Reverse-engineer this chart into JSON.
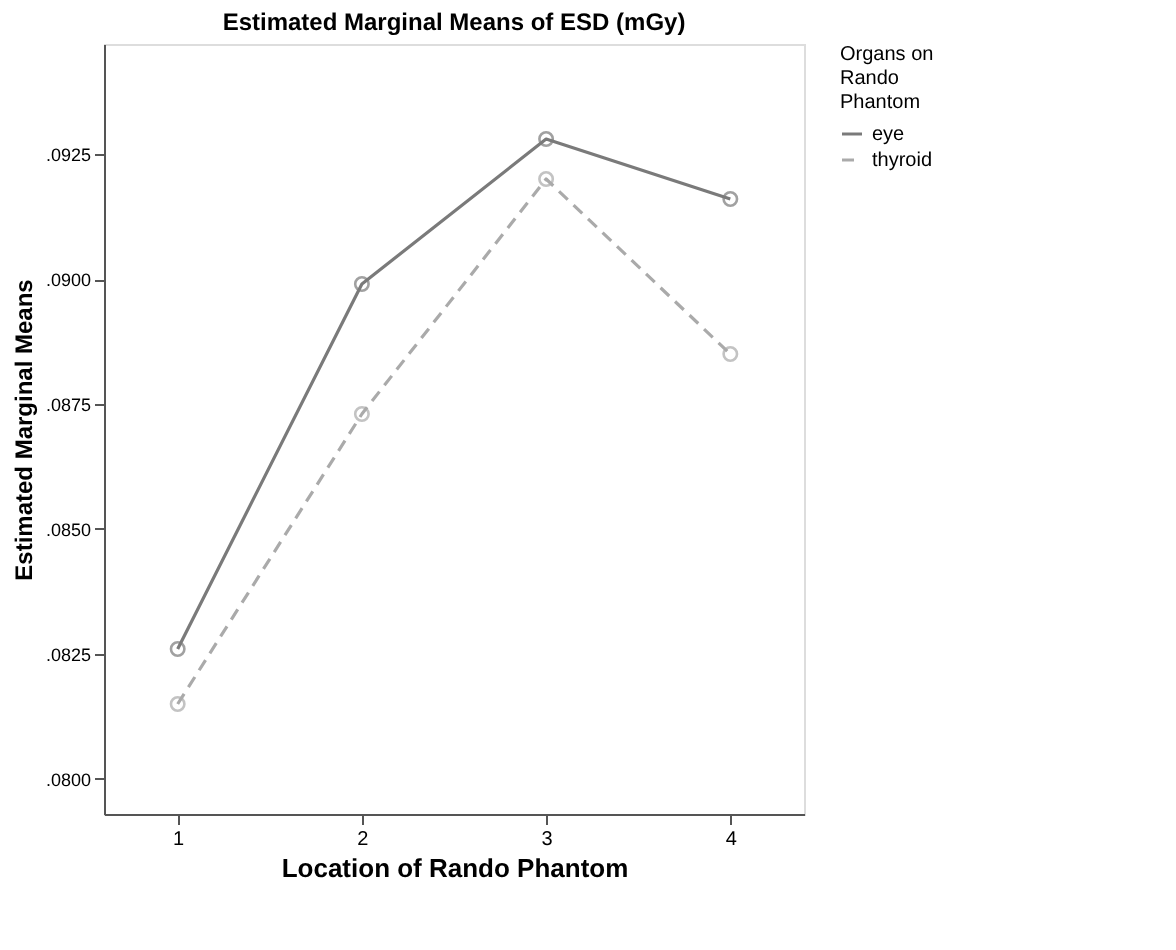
{
  "chart_data": {
    "type": "line",
    "title": "Estimated Marginal Means of ESD (mGy)",
    "xlabel": "Location of Rando Phantom",
    "ylabel": "Estimated Marginal Means",
    "legend_title": "Organs on Rando Phantom",
    "x": [
      1,
      2,
      3,
      4
    ],
    "series": [
      {
        "name": "eye",
        "color": "#7a7a7a",
        "values": [
          0.0826,
          0.0899,
          0.0928,
          0.0916
        ],
        "line_style": "solid"
      },
      {
        "name": "thyroid",
        "color": "#aaaaaa",
        "values": [
          0.0815,
          0.0873,
          0.092,
          0.0885
        ],
        "line_style": "dashed"
      }
    ],
    "xlim": [
      0.6,
      4.4
    ],
    "xticks": [
      1,
      2,
      3,
      4
    ],
    "ylim": [
      0.0793,
      0.0947
    ],
    "yticks": [
      {
        "value": 0.08,
        "label": ".0800"
      },
      {
        "value": 0.0825,
        "label": ".0825"
      },
      {
        "value": 0.085,
        "label": ".0850"
      },
      {
        "value": 0.0875,
        "label": ".0875"
      },
      {
        "value": 0.09,
        "label": ".0900"
      },
      {
        "value": 0.0925,
        "label": ".0925"
      }
    ],
    "marker": "circle",
    "grid": false,
    "legend": "top right"
  }
}
